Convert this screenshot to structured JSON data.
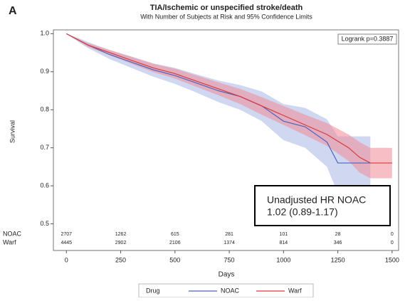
{
  "chart_data": {
    "type": "line",
    "panel_label": "A",
    "title": "TIA/Ischemic or unspecified stroke/death",
    "subtitle": "With Number of Subjects at Risk and 95% Confidence Limits",
    "xlabel": "Days",
    "ylabel": "Survival",
    "xlim": [
      -60,
      1530
    ],
    "ylim": [
      0.43,
      1.01
    ],
    "xticks": [
      0,
      250,
      500,
      750,
      1000,
      1250,
      1500
    ],
    "yticks": [
      0.5,
      0.6,
      0.7,
      0.8,
      0.9,
      {
        "value": 1,
        "label": "1.0"
      }
    ],
    "legend_title": "Drug",
    "legend_position": "bottom",
    "series": [
      {
        "name": "NOAC",
        "color": "#4a64c0",
        "band_color": "#a9b8e6",
        "x": [
          0,
          50,
          100,
          200,
          300,
          400,
          500,
          600,
          700,
          800,
          900,
          1000,
          1100,
          1200,
          1250,
          1400
        ],
        "values": [
          1.0,
          0.985,
          0.97,
          0.945,
          0.925,
          0.905,
          0.89,
          0.87,
          0.85,
          0.835,
          0.81,
          0.77,
          0.755,
          0.715,
          0.66,
          0.66
        ],
        "lower": [
          1.0,
          0.98,
          0.962,
          0.933,
          0.91,
          0.887,
          0.868,
          0.845,
          0.82,
          0.8,
          0.77,
          0.72,
          0.7,
          0.65,
          0.58,
          0.58
        ],
        "upper": [
          1.0,
          0.99,
          0.978,
          0.957,
          0.94,
          0.922,
          0.91,
          0.893,
          0.877,
          0.865,
          0.848,
          0.815,
          0.805,
          0.775,
          0.73,
          0.73
        ]
      },
      {
        "name": "Warf",
        "color": "#d83a3a",
        "band_color": "#f08a96",
        "x": [
          0,
          100,
          200,
          300,
          400,
          500,
          600,
          700,
          800,
          900,
          1000,
          1100,
          1200,
          1300,
          1350,
          1400,
          1500
        ],
        "values": [
          1.0,
          0.97,
          0.95,
          0.93,
          0.91,
          0.895,
          0.875,
          0.855,
          0.835,
          0.81,
          0.785,
          0.76,
          0.735,
          0.7,
          0.675,
          0.66,
          0.66
        ],
        "lower": [
          1.0,
          0.965,
          0.943,
          0.921,
          0.899,
          0.882,
          0.86,
          0.838,
          0.815,
          0.787,
          0.76,
          0.733,
          0.705,
          0.665,
          0.635,
          0.62,
          0.62
        ],
        "upper": [
          1.0,
          0.975,
          0.957,
          0.939,
          0.921,
          0.908,
          0.89,
          0.872,
          0.855,
          0.833,
          0.81,
          0.787,
          0.765,
          0.735,
          0.715,
          0.7,
          0.7
        ]
      }
    ],
    "at_risk": {
      "x": [
        0,
        250,
        500,
        750,
        1000,
        1250,
        1500
      ],
      "rows": [
        {
          "name": "NOAC",
          "values": [
            2707,
            1262,
            615,
            281,
            101,
            28,
            0
          ]
        },
        {
          "name": "Warf",
          "values": [
            4445,
            2902,
            2106,
            1374,
            814,
            346,
            0
          ]
        }
      ]
    },
    "annotations": [
      "Logrank p=0.3887",
      "Unadjusted HR NOAC",
      "1.02 (0.89-1.17)"
    ]
  }
}
